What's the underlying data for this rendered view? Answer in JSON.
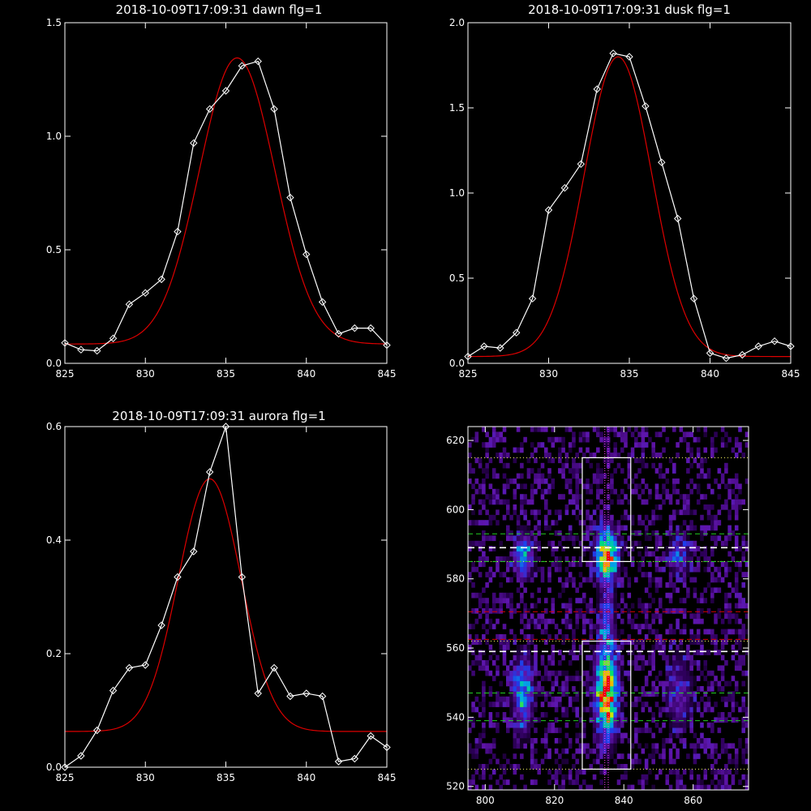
{
  "chart_data": [
    {
      "type": "line",
      "title": "2018-10-09T17:09:31 dawn flg=1",
      "xlim": [
        825,
        845
      ],
      "ylim": [
        0,
        1.5
      ],
      "xticks": [
        825,
        830,
        835,
        840,
        845
      ],
      "xtick_labels": [
        "825",
        "830",
        "835",
        "840",
        "845"
      ],
      "yticks": [
        0,
        0.5,
        1.0,
        1.5
      ],
      "ytick_labels": [
        "0.0",
        "0.5",
        "1.0",
        "1.5"
      ],
      "colors": {
        "data": "#ffffff",
        "fit": "#dd0000",
        "axes": "#ffffff"
      },
      "series": [
        {
          "marker": "diamond",
          "x": [
            825,
            826,
            827,
            828,
            829,
            830,
            831,
            832,
            833,
            834,
            835,
            836,
            837,
            838,
            839,
            840,
            841,
            842,
            843,
            844,
            845
          ],
          "y": [
            0.09,
            0.06,
            0.055,
            0.11,
            0.26,
            0.31,
            0.37,
            0.58,
            0.97,
            1.12,
            1.2,
            1.31,
            1.33,
            1.12,
            0.73,
            0.48,
            0.27,
            0.13,
            0.155,
            0.155,
            0.08
          ]
        }
      ],
      "fit": {
        "amplitude": 1.26,
        "center": 835.7,
        "sigma": 2.35,
        "baseline": 0.085
      }
    },
    {
      "type": "line",
      "title": "2018-10-09T17:09:31 dusk flg=1",
      "xlim": [
        825,
        845
      ],
      "ylim": [
        0,
        2.0
      ],
      "xticks": [
        825,
        830,
        835,
        840,
        845
      ],
      "xtick_labels": [
        "825",
        "830",
        "835",
        "840",
        "845"
      ],
      "yticks": [
        0,
        0.5,
        1.0,
        1.5,
        2.0
      ],
      "ytick_labels": [
        "0.0",
        "0.5",
        "1.0",
        "1.5",
        "2.0"
      ],
      "colors": {
        "data": "#ffffff",
        "fit": "#dd0000",
        "axes": "#ffffff"
      },
      "series": [
        {
          "marker": "diamond",
          "x": [
            825,
            826,
            827,
            828,
            829,
            830,
            831,
            832,
            833,
            834,
            835,
            836,
            837,
            838,
            839,
            840,
            841,
            842,
            843,
            844,
            845
          ],
          "y": [
            0.04,
            0.1,
            0.09,
            0.18,
            0.38,
            0.9,
            1.03,
            1.17,
            1.61,
            1.82,
            1.8,
            1.51,
            1.18,
            0.85,
            0.38,
            0.06,
            0.03,
            0.05,
            0.1,
            0.13,
            0.1
          ]
        }
      ],
      "fit": {
        "amplitude": 1.76,
        "center": 834.3,
        "sigma": 2.1,
        "baseline": 0.04
      }
    },
    {
      "type": "line",
      "title": "2018-10-09T17:09:31 aurora flg=1",
      "xlim": [
        825,
        845
      ],
      "ylim": [
        0,
        0.6
      ],
      "xticks": [
        825,
        830,
        835,
        840,
        845
      ],
      "xtick_labels": [
        "825",
        "830",
        "835",
        "840",
        "845"
      ],
      "yticks": [
        0,
        0.2,
        0.4,
        0.6
      ],
      "ytick_labels": [
        "0.0",
        "0.2",
        "0.4",
        "0.6"
      ],
      "colors": {
        "data": "#ffffff",
        "fit": "#dd0000",
        "axes": "#ffffff"
      },
      "series": [
        {
          "marker": "diamond",
          "x": [
            825,
            826,
            827,
            828,
            829,
            830,
            831,
            832,
            833,
            834,
            835,
            836,
            837,
            838,
            839,
            840,
            841,
            842,
            843,
            844,
            845
          ],
          "y": [
            0.0,
            0.02,
            0.065,
            0.135,
            0.175,
            0.18,
            0.25,
            0.335,
            0.38,
            0.52,
            0.6,
            0.335,
            0.13,
            0.175,
            0.125,
            0.13,
            0.125,
            0.01,
            0.015,
            0.055,
            0.035
          ]
        }
      ],
      "fit": {
        "amplitude": 0.445,
        "center": 834.0,
        "sigma": 1.95,
        "baseline": 0.063
      }
    },
    {
      "type": "heatmap",
      "title": "",
      "xlim": [
        795,
        876
      ],
      "ylim": [
        519,
        624
      ],
      "xticks": [
        800,
        820,
        840,
        860
      ],
      "xtick_labels": [
        "800",
        "820",
        "840",
        "860"
      ],
      "yticks": [
        520,
        540,
        560,
        580,
        600,
        620
      ],
      "ytick_labels": [
        "520",
        "540",
        "560",
        "580",
        "600",
        "620"
      ],
      "colormap": "rainbow",
      "colors": {
        "box": "#ffffff",
        "dotted": "#ffff66",
        "center_line": "#ff44ff",
        "white_dash": "#ffffff",
        "green_dash": "#22cc22",
        "red_dash": "#dd0000"
      },
      "sources": [
        {
          "x": 835,
          "y": 547,
          "sx": 2.0,
          "sy": 8,
          "amp": 1.0
        },
        {
          "x": 835,
          "y": 587,
          "sx": 2.0,
          "sy": 5,
          "amp": 0.85
        },
        {
          "x": 835,
          "y": 567,
          "sx": 1.5,
          "sy": 6,
          "amp": 0.32
        },
        {
          "x": 811,
          "y": 547,
          "sx": 1.8,
          "sy": 7,
          "amp": 0.45
        },
        {
          "x": 811,
          "y": 587,
          "sx": 1.8,
          "sy": 4,
          "amp": 0.45
        },
        {
          "x": 856,
          "y": 547,
          "sx": 2.5,
          "sy": 7,
          "amp": 0.22
        },
        {
          "x": 856,
          "y": 587,
          "sx": 2.0,
          "sy": 4,
          "amp": 0.25
        }
      ],
      "boxes": [
        {
          "x0": 828,
          "x1": 842,
          "y0": 525,
          "y1": 562
        },
        {
          "x0": 828,
          "x1": 842,
          "y0": 585,
          "y1": 615
        }
      ],
      "dotted_hlines": [
        525,
        562,
        585,
        615
      ],
      "center_vlines": [
        834.5,
        835.5
      ],
      "white_dash_hlines": [
        559,
        589
      ],
      "green_dash_hlines": [
        539,
        547,
        585,
        593
      ],
      "red_dash_hlines": [
        562.5,
        570.5
      ]
    }
  ]
}
